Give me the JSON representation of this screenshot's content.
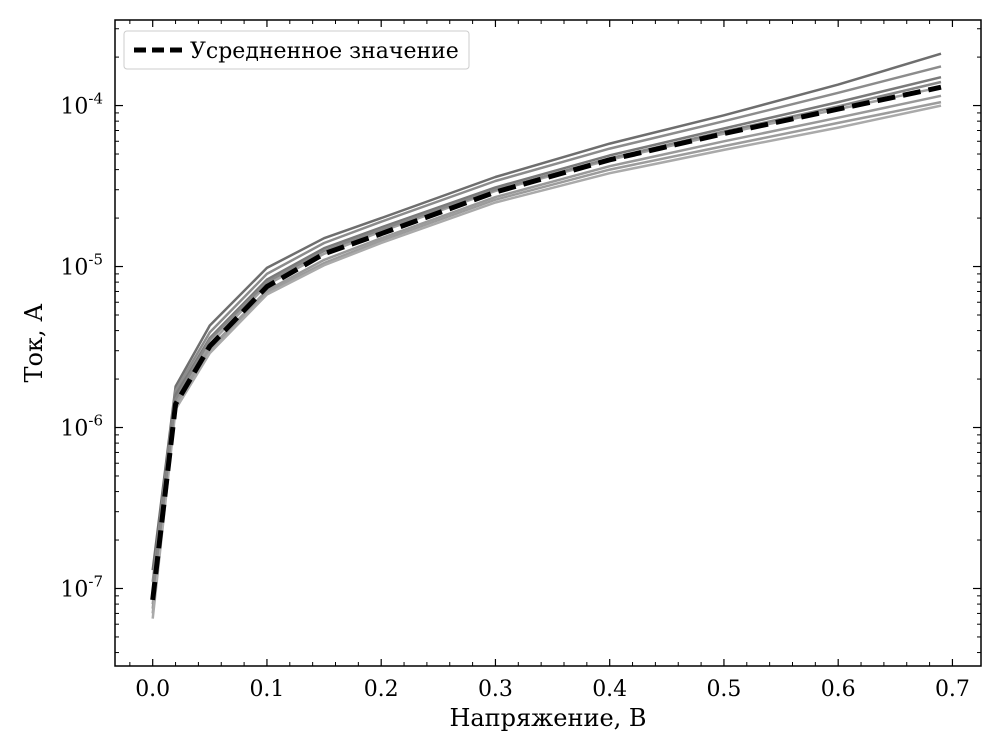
{
  "chart_data": {
    "type": "line",
    "xlabel": "Напряжение, В",
    "ylabel": "Ток, А",
    "xlim": [
      -0.033,
      0.725
    ],
    "ylim": [
      3.3e-08,
      0.00034
    ],
    "yscale": "log",
    "grid": false,
    "legend_position": "top-left",
    "x_ticks": [
      0.0,
      0.1,
      0.2,
      0.3,
      0.4,
      0.5,
      0.6,
      0.7
    ],
    "x_tick_labels": [
      "0.0",
      "0.1",
      "0.2",
      "0.3",
      "0.4",
      "0.5",
      "0.6",
      "0.7"
    ],
    "y_ticks": [
      1e-07,
      1e-06,
      1e-05,
      0.0001
    ],
    "y_tick_labels": [
      {
        "base": "10",
        "exp": "-7"
      },
      {
        "base": "10",
        "exp": "-6"
      },
      {
        "base": "10",
        "exp": "-5"
      },
      {
        "base": "10",
        "exp": "-4"
      }
    ],
    "x": [
      0.0,
      0.02,
      0.05,
      0.1,
      0.15,
      0.2,
      0.3,
      0.4,
      0.5,
      0.6,
      0.69
    ],
    "series": [
      {
        "name": "Усредненное значение",
        "color": "#000000",
        "style": "dashed",
        "values": [
          8.5e-08,
          1.4e-06,
          3.2e-06,
          7.5e-06,
          1.2e-05,
          1.6e-05,
          2.9e-05,
          4.6e-05,
          6.7e-05,
          9.5e-05,
          0.00013
        ]
      },
      {
        "color": "#6e6e6e",
        "values": [
          1.3e-07,
          1.8e-06,
          4.3e-06,
          9.8e-06,
          1.5e-05,
          2e-05,
          3.6e-05,
          5.8e-05,
          8.7e-05,
          0.000135,
          0.00021
        ]
      },
      {
        "color": "#8c8c8c",
        "values": [
          1.1e-07,
          1.7e-06,
          3.9e-06,
          9e-06,
          1.4e-05,
          1.9e-05,
          3.4e-05,
          5.4e-05,
          8e-05,
          0.00012,
          0.000175
        ]
      },
      {
        "color": "#7a7a7a",
        "values": [
          9.5e-08,
          1.6e-06,
          3.6e-06,
          8.3e-06,
          1.3e-05,
          1.75e-05,
          3.1e-05,
          4.9e-05,
          7.2e-05,
          0.000105,
          0.00015
        ]
      },
      {
        "color": "#a0a0a0",
        "values": [
          8e-08,
          1.45e-06,
          3.3e-06,
          7.7e-06,
          1.2e-05,
          1.65e-05,
          2.95e-05,
          4.6e-05,
          6.7e-05,
          9.5e-05,
          0.00013
        ]
      },
      {
        "color": "#999999",
        "values": [
          7.5e-08,
          1.4e-06,
          3.1e-06,
          7.1e-06,
          1.1e-05,
          1.5e-05,
          2.7e-05,
          4.2e-05,
          6e-05,
          8.4e-05,
          0.000115
        ]
      },
      {
        "color": "#9c9c9c",
        "values": [
          7e-08,
          1.35e-06,
          3e-06,
          6.9e-06,
          1.05e-05,
          1.45e-05,
          2.6e-05,
          4e-05,
          5.6e-05,
          7.8e-05,
          0.000105
        ]
      },
      {
        "color": "#aaaaaa",
        "values": [
          6.5e-08,
          1.3e-06,
          2.9e-06,
          6.7e-06,
          1.02e-05,
          1.4e-05,
          2.5e-05,
          3.8e-05,
          5.3e-05,
          7.3e-05,
          0.0001
        ]
      },
      {
        "color": "#888888",
        "values": [
          9e-08,
          1.5e-06,
          3.5e-06,
          8e-06,
          1.25e-05,
          1.7e-05,
          3e-05,
          4.7e-05,
          6.9e-05,
          9.9e-05,
          0.00014
        ]
      }
    ]
  }
}
